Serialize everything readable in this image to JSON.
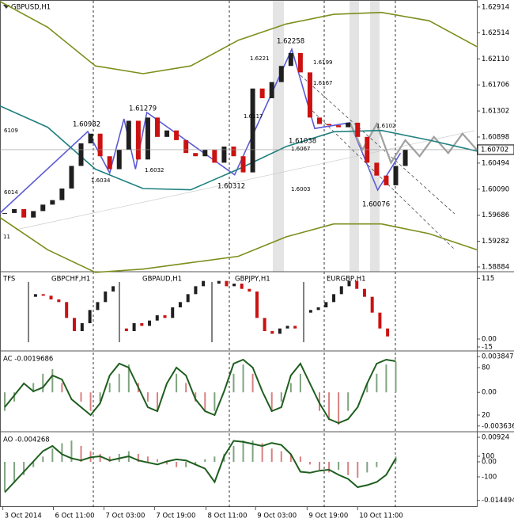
{
  "chart_data": [
    {
      "type": "candlestick",
      "title": "GBPUSD,H1",
      "values": [
        1.5972,
        1.5978,
        1.5965,
        1.5975,
        1.5985,
        1.5992,
        1.601,
        1.6045,
        1.608,
        1.6095,
        1.606,
        1.604,
        1.607,
        1.6115,
        1.6055,
        1.612,
        1.609,
        1.61,
        1.6085,
        1.6065,
        1.606,
        1.607,
        1.605,
        1.6075,
        1.606,
        1.6035,
        1.6165,
        1.615,
        1.6175,
        1.62,
        1.622,
        1.619,
        1.612,
        1.611,
        1.6108,
        1.6105,
        1.6112,
        1.609,
        1.605,
        1.603,
        1.6015,
        1.6045,
        1.607
      ],
      "up_color": "#1f1f1f",
      "down_color": "#cc1111",
      "current_price": 1.60702,
      "annotations": [
        "1.60982",
        "1.61279",
        "1.62258",
        "1.60312",
        "1.61038",
        "1.60076",
        "1.6034",
        "1.6032",
        "1.6117",
        "1.6221",
        "1.6199",
        "1.6167",
        "1.6067",
        "1.6003",
        "1.6102",
        "6109",
        "6014",
        "11"
      ],
      "series": [
        {
          "color": "#5b5bd6",
          "x": [
            0,
            9.2,
            11.5,
            13,
            14.2,
            15.4,
            24.6,
            30.6,
            33,
            36.7,
            39.6,
            42
          ],
          "values": [
            1.5972,
            1.60982,
            1.6034,
            1.6118,
            1.604,
            1.61279,
            1.60312,
            1.62258,
            1.6103,
            1.6112,
            1.60076,
            1.6065
          ]
        },
        {
          "color": "#a0a0a0",
          "x": [
            36.7,
            38,
            39.5,
            41,
            42.5,
            44,
            45.5,
            47,
            48.5,
            50
          ],
          "values": [
            1.6112,
            1.607,
            1.611,
            1.605,
            1.6085,
            1.606,
            1.609,
            1.6065,
            1.6095,
            1.607
          ]
        },
        {
          "color": "#1f8080",
          "x": [
            0,
            5,
            10,
            15,
            20,
            25,
            30,
            35,
            40,
            45,
            50
          ],
          "values": [
            1.6138,
            1.6105,
            1.604,
            1.601,
            1.6008,
            1.604,
            1.6075,
            1.6098,
            1.61,
            1.6085,
            1.6068
          ]
        },
        {
          "color": "#7c8f1c",
          "x": [
            0,
            5,
            10,
            15,
            20,
            25,
            30,
            35,
            40,
            45,
            50
          ],
          "values": [
            1.63,
            1.626,
            1.62,
            1.6188,
            1.62,
            1.624,
            1.6265,
            1.628,
            1.6283,
            1.627,
            1.623
          ]
        },
        {
          "color": "#7c8f1c",
          "x": [
            0,
            5,
            10,
            15,
            20,
            25,
            30,
            35,
            40,
            45,
            50
          ],
          "values": [
            1.5965,
            1.5915,
            1.588,
            1.5885,
            1.5895,
            1.5905,
            1.5935,
            1.5955,
            1.5955,
            1.594,
            1.5915
          ]
        }
      ],
      "ylim": [
        1.5881,
        1.6301
      ],
      "yticks": [
        1.62914,
        1.62514,
        {
          "value": 1.6211,
          "label": "1.62110"
        },
        1.61706,
        1.61302,
        1.60898,
        1.60494,
        {
          "value": 1.6009,
          "label": "1.60090"
        },
        1.59686,
        1.59282,
        1.58884
      ],
      "xlim": [
        0,
        50
      ],
      "xticks": [
        {
          "value": 0.3,
          "label": "3 Oct 2014"
        },
        {
          "value": 5.6,
          "label": "6 Oct 11:00"
        },
        {
          "value": 10.9,
          "label": "7 Oct 03:00"
        },
        {
          "value": 16.2,
          "label": "7 Oct 19:00"
        },
        {
          "value": 21.6,
          "label": "8 Oct 11:00"
        },
        {
          "value": 26.8,
          "label": "9 Oct 03:00"
        },
        {
          "value": 32.2,
          "label": "9 Oct 19:00"
        },
        {
          "value": 37.5,
          "label": "10 Oct 11:00"
        }
      ]
    },
    {
      "type": "multi-line",
      "title": "TFS",
      "color": "#cc1111",
      "panels": [
        {
          "title": "GBPCHF,H1",
          "values": [
            80,
            85,
            82,
            75,
            70,
            40,
            15,
            30,
            55,
            70,
            90,
            100
          ]
        },
        {
          "title": "GBPAUD,H1",
          "values": [
            20,
            15,
            30,
            25,
            35,
            45,
            40,
            60,
            70,
            85,
            100,
            110
          ]
        },
        {
          "title": "GBPJPY,H1",
          "values": [
            105,
            110,
            100,
            105,
            95,
            90,
            40,
            15,
            10,
            20,
            25,
            20
          ]
        },
        {
          "title": "EURGBP,H1",
          "values": [
            50,
            55,
            60,
            70,
            85,
            100,
            110,
            95,
            80,
            50,
            20,
            5
          ]
        }
      ],
      "ylim": [
        -21,
        126
      ],
      "yticks": [
        115,
        {
          "value": 0,
          "label": "0.00"
        },
        -15
      ]
    },
    {
      "type": "histogram-line",
      "title": "AC -0.0019686",
      "up_color": "#7fa37f",
      "down_color": "#d98080",
      "values": [
        -0.002,
        -0.001,
        0,
        0.001,
        0.002,
        0.0025,
        0.001,
        0,
        -0.001,
        -0.002,
        -0.001,
        0.001,
        0.002,
        0.003,
        0.001,
        -0.001,
        -0.002,
        0,
        0.002,
        0.001,
        -0.001,
        -0.002,
        -0.002,
        0,
        0.002,
        0.003,
        0.002,
        0,
        -0.002,
        -0.001,
        0.001,
        0.002,
        0,
        -0.002,
        -0.003,
        -0.0035,
        -0.002,
        0,
        0.001,
        0.002,
        0.003,
        0.0033
      ],
      "series": [
        {
          "color": "#1e5e1e",
          "axis": "y2",
          "values": [
            30,
            45,
            60,
            50,
            55,
            70,
            65,
            40,
            30,
            20,
            35,
            70,
            85,
            80,
            55,
            30,
            25,
            60,
            80,
            70,
            40,
            25,
            20,
            50,
            85,
            90,
            80,
            50,
            25,
            30,
            70,
            85,
            60,
            35,
            15,
            10,
            15,
            30,
            60,
            85,
            90,
            88
          ]
        }
      ],
      "ylim": [
        -0.00417,
        0.00438
      ],
      "yticks": [
        0.003847,
        {
          "value": 0,
          "label": "0.00"
        },
        -0.003636
      ],
      "y2lim": [
        0,
        100
      ],
      "y2ticks": [
        80,
        20
      ]
    },
    {
      "type": "histogram-line",
      "title": "AO -0.004268",
      "up_color": "#7fa37f",
      "down_color": "#d98080",
      "values": [
        -0.011,
        -0.008,
        -0.005,
        -0.002,
        0.002,
        0.005,
        0.007,
        0.008,
        0.006,
        0.004,
        0.003,
        0.002,
        0.003,
        0.004,
        0.003,
        0.002,
        0.001,
        -0.001,
        -0.002,
        -0.002,
        -0.001,
        0.001,
        0.002,
        0.003,
        0.006,
        0.008,
        0.008,
        0.007,
        0.005,
        0.004,
        0.003,
        0.002,
        -0.001,
        -0.003,
        -0.004,
        -0.003,
        -0.005,
        -0.006,
        -0.004,
        -0.002,
        0,
        0.002
      ],
      "series": [
        {
          "color": "#1e5e1e",
          "axis": "y2",
          "values": [
            -250,
            -150,
            -50,
            50,
            150,
            200,
            120,
            80,
            60,
            90,
            100,
            60,
            80,
            100,
            60,
            40,
            20,
            50,
            70,
            60,
            20,
            -20,
            -150,
            100,
            250,
            240,
            220,
            200,
            230,
            210,
            120,
            -50,
            -60,
            -40,
            -30,
            -80,
            -120,
            -200,
            -180,
            -150,
            -80,
            80
          ]
        }
      ],
      "ylim": [
        -0.01669,
        0.01103
      ],
      "yticks": [
        0.00924,
        {
          "value": 0,
          "label": "0.00"
        },
        -0.014494
      ],
      "y2lim": [
        -385,
        331
      ],
      "y2ticks": [
        100,
        -100
      ]
    }
  ]
}
